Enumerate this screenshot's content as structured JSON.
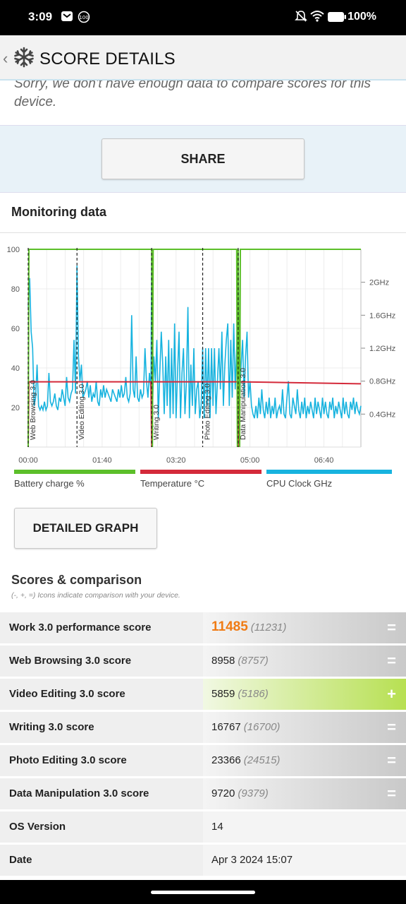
{
  "status": {
    "time": "3:09",
    "battery": "100%",
    "notif_badge": "100"
  },
  "appbar": {
    "title": "SCORE DETAILS"
  },
  "notice": {
    "line1": "Sorry, we don't have enough data to compare scores for this",
    "line2": "device."
  },
  "share_label": "SHARE",
  "monitor": {
    "title": "Monitoring data",
    "legend": [
      {
        "label": "Battery charge %",
        "color": "#5cbf2a"
      },
      {
        "label": "Temperature °C",
        "color": "#d42a3a"
      },
      {
        "label": "CPU Clock GHz",
        "color": "#17b3df"
      }
    ],
    "detailed_label": "DETAILED GRAPH"
  },
  "chart_data": {
    "type": "line",
    "x_ticks": [
      "00:00",
      "01:40",
      "03:20",
      "05:00",
      "06:40"
    ],
    "y_left_ticks": [
      "100",
      "80",
      "60",
      "40",
      "20"
    ],
    "y_right_ticks": [
      "2GHz",
      "1.6GHz",
      "1.2GHz",
      "0.8GHz",
      "0.4GHz"
    ],
    "ylim_left": [
      0,
      100
    ],
    "ylim_right": [
      0,
      2.4
    ],
    "xlim_seconds": [
      0,
      450
    ],
    "markers": [
      {
        "label": "Web Browsing 3.0",
        "x": 0
      },
      {
        "label": "Video Editing 3.0",
        "x": 66
      },
      {
        "label": "Writing 3.0",
        "x": 167
      },
      {
        "label": "Photo Editing 3.0",
        "x": 236
      },
      {
        "label": "Data Manipulation 3.0",
        "x": 284
      }
    ],
    "series": [
      {
        "name": "Battery charge %",
        "axis": "left",
        "points": [
          [
            0,
            0
          ],
          [
            1,
            100
          ],
          [
            166,
            100
          ],
          [
            167,
            100
          ],
          [
            168,
            0
          ],
          [
            169,
            100
          ],
          [
            282,
            100
          ],
          [
            283,
            0
          ],
          [
            284,
            100
          ],
          [
            286,
            0
          ],
          [
            287,
            100
          ],
          [
            450,
            100
          ]
        ]
      },
      {
        "name": "Temperature °C",
        "axis": "left",
        "points": [
          [
            0,
            0
          ],
          [
            1,
            33
          ],
          [
            166,
            33
          ],
          [
            167,
            0
          ],
          [
            168,
            33
          ],
          [
            283,
            33
          ],
          [
            284,
            0
          ],
          [
            285,
            33
          ],
          [
            450,
            32
          ]
        ]
      },
      {
        "name": "CPU Clock GHz",
        "axis": "right",
        "points": [
          [
            0,
            1.7
          ],
          [
            2,
            2.05
          ],
          [
            4,
            1.4
          ],
          [
            6,
            1.2
          ],
          [
            8,
            0.5
          ],
          [
            10,
            0.6
          ],
          [
            12,
            1.0
          ],
          [
            14,
            0.5
          ],
          [
            16,
            0.45
          ],
          [
            18,
            0.5
          ],
          [
            20,
            0.45
          ],
          [
            22,
            0.55
          ],
          [
            24,
            0.45
          ],
          [
            26,
            0.5
          ],
          [
            28,
            0.9
          ],
          [
            30,
            0.55
          ],
          [
            32,
            0.5
          ],
          [
            34,
            0.55
          ],
          [
            36,
            0.65
          ],
          [
            38,
            0.5
          ],
          [
            40,
            0.45
          ],
          [
            42,
            0.6
          ],
          [
            44,
            0.55
          ],
          [
            46,
            0.7
          ],
          [
            48,
            0.6
          ],
          [
            50,
            0.5
          ],
          [
            52,
            0.85
          ],
          [
            54,
            0.6
          ],
          [
            56,
            0.55
          ],
          [
            58,
            0.65
          ],
          [
            60,
            0.7
          ],
          [
            62,
            1.3
          ],
          [
            64,
            0.65
          ],
          [
            66,
            2.2
          ],
          [
            68,
            1.1
          ],
          [
            70,
            0.8
          ],
          [
            72,
            1.0
          ],
          [
            74,
            0.6
          ],
          [
            76,
            0.65
          ],
          [
            78,
            0.7
          ],
          [
            80,
            0.8
          ],
          [
            82,
            0.6
          ],
          [
            84,
            0.75
          ],
          [
            86,
            0.55
          ],
          [
            88,
            0.65
          ],
          [
            90,
            0.6
          ],
          [
            92,
            0.8
          ],
          [
            94,
            0.55
          ],
          [
            96,
            0.5
          ],
          [
            98,
            0.7
          ],
          [
            100,
            0.6
          ],
          [
            102,
            0.75
          ],
          [
            104,
            0.6
          ],
          [
            106,
            0.7
          ],
          [
            108,
            0.65
          ],
          [
            110,
            0.6
          ],
          [
            112,
            0.55
          ],
          [
            114,
            0.7
          ],
          [
            116,
            0.65
          ],
          [
            118,
            0.6
          ],
          [
            120,
            0.55
          ],
          [
            122,
            0.7
          ],
          [
            124,
            0.6
          ],
          [
            126,
            0.75
          ],
          [
            128,
            0.6
          ],
          [
            130,
            0.65
          ],
          [
            132,
            0.85
          ],
          [
            134,
            0.6
          ],
          [
            136,
            0.55
          ],
          [
            138,
            0.65
          ],
          [
            140,
            1.6
          ],
          [
            142,
            0.7
          ],
          [
            144,
            0.6
          ],
          [
            146,
            1.1
          ],
          [
            148,
            0.6
          ],
          [
            150,
            0.55
          ],
          [
            152,
            0.7
          ],
          [
            154,
            0.6
          ],
          [
            156,
            0.65
          ],
          [
            158,
            1.2
          ],
          [
            160,
            0.8
          ],
          [
            162,
            0.6
          ],
          [
            164,
            0.9
          ],
          [
            166,
            0.7
          ],
          [
            167,
            2.3
          ],
          [
            168,
            0.4
          ],
          [
            170,
            1.1
          ],
          [
            172,
            0.8
          ],
          [
            174,
            1.3
          ],
          [
            176,
            0.35
          ],
          [
            178,
            0.9
          ],
          [
            180,
            1.4
          ],
          [
            182,
            1.0
          ],
          [
            184,
            0.4
          ],
          [
            186,
            1.1
          ],
          [
            188,
            0.5
          ],
          [
            190,
            1.3
          ],
          [
            192,
            0.35
          ],
          [
            194,
            1.2
          ],
          [
            196,
            0.4
          ],
          [
            198,
            1.5
          ],
          [
            200,
            0.35
          ],
          [
            202,
            0.9
          ],
          [
            204,
            1.4
          ],
          [
            206,
            0.35
          ],
          [
            208,
            0.9
          ],
          [
            210,
            1.2
          ],
          [
            212,
            0.4
          ],
          [
            214,
            0.8
          ],
          [
            216,
            1.7
          ],
          [
            218,
            0.35
          ],
          [
            220,
            1.0
          ],
          [
            222,
            0.5
          ],
          [
            224,
            1.2
          ],
          [
            226,
            0.4
          ],
          [
            228,
            0.7
          ],
          [
            230,
            0.8
          ],
          [
            232,
            0.35
          ],
          [
            234,
            0.5
          ],
          [
            236,
            1.2
          ],
          [
            238,
            0.35
          ],
          [
            240,
            1.2
          ],
          [
            242,
            0.5
          ],
          [
            244,
            1.2
          ],
          [
            246,
            0.35
          ],
          [
            248,
            1.2
          ],
          [
            250,
            0.5
          ],
          [
            252,
            1.2
          ],
          [
            254,
            0.4
          ],
          [
            256,
            0.8
          ],
          [
            258,
            1.2
          ],
          [
            260,
            0.7
          ],
          [
            262,
            1.4
          ],
          [
            264,
            0.5
          ],
          [
            266,
            1.0
          ],
          [
            268,
            1.3
          ],
          [
            270,
            1.5
          ],
          [
            272,
            0.5
          ],
          [
            274,
            1.3
          ],
          [
            276,
            0.6
          ],
          [
            278,
            1.5
          ],
          [
            280,
            0.7
          ],
          [
            282,
            1.2
          ],
          [
            284,
            2.2
          ],
          [
            286,
            0.6
          ],
          [
            288,
            1.0
          ],
          [
            290,
            1.3
          ],
          [
            292,
            0.6
          ],
          [
            294,
            1.1
          ],
          [
            296,
            1.4
          ],
          [
            298,
            0.6
          ],
          [
            300,
            0.8
          ],
          [
            302,
            0.5
          ],
          [
            304,
            0.4
          ],
          [
            306,
            0.35
          ],
          [
            308,
            0.5
          ],
          [
            310,
            0.35
          ],
          [
            312,
            0.6
          ],
          [
            314,
            0.4
          ],
          [
            316,
            0.7
          ],
          [
            318,
            0.45
          ],
          [
            320,
            0.35
          ],
          [
            322,
            0.55
          ],
          [
            324,
            0.4
          ],
          [
            326,
            0.6
          ],
          [
            328,
            0.35
          ],
          [
            330,
            0.5
          ],
          [
            332,
            0.4
          ],
          [
            334,
            0.6
          ],
          [
            336,
            0.35
          ],
          [
            338,
            0.45
          ],
          [
            340,
            0.5
          ],
          [
            342,
            0.4
          ],
          [
            344,
            0.7
          ],
          [
            346,
            0.4
          ],
          [
            348,
            0.35
          ],
          [
            350,
            0.6
          ],
          [
            352,
            0.8
          ],
          [
            354,
            0.4
          ],
          [
            356,
            0.35
          ],
          [
            358,
            0.6
          ],
          [
            360,
            0.5
          ],
          [
            362,
            0.4
          ],
          [
            364,
            0.7
          ],
          [
            366,
            0.45
          ],
          [
            368,
            0.35
          ],
          [
            370,
            0.55
          ],
          [
            372,
            0.4
          ],
          [
            374,
            0.6
          ],
          [
            376,
            0.35
          ],
          [
            378,
            0.5
          ],
          [
            380,
            0.4
          ],
          [
            382,
            0.55
          ],
          [
            384,
            0.45
          ],
          [
            386,
            0.35
          ],
          [
            388,
            0.6
          ],
          [
            390,
            0.4
          ],
          [
            392,
            0.55
          ],
          [
            394,
            0.45
          ],
          [
            396,
            0.35
          ],
          [
            398,
            0.6
          ],
          [
            400,
            0.4
          ],
          [
            402,
            0.55
          ],
          [
            404,
            0.4
          ],
          [
            406,
            0.35
          ],
          [
            408,
            0.55
          ],
          [
            410,
            0.45
          ],
          [
            412,
            0.6
          ],
          [
            414,
            0.35
          ],
          [
            416,
            0.5
          ],
          [
            418,
            0.4
          ],
          [
            420,
            0.55
          ],
          [
            422,
            0.45
          ],
          [
            424,
            0.35
          ],
          [
            426,
            0.6
          ],
          [
            428,
            0.4
          ],
          [
            430,
            0.55
          ],
          [
            432,
            0.4
          ],
          [
            434,
            0.35
          ],
          [
            436,
            0.55
          ],
          [
            438,
            0.45
          ],
          [
            440,
            0.6
          ],
          [
            442,
            0.4
          ],
          [
            444,
            0.55
          ],
          [
            446,
            0.45
          ],
          [
            448,
            0.4
          ],
          [
            450,
            0.5
          ]
        ]
      }
    ]
  },
  "scores": {
    "title": "Scores & comparison",
    "note": "(-, +, =) Icons indicate comparison with your device.",
    "rows": [
      {
        "label": "Work 3.0 performance score",
        "value": "11485",
        "compare": "(11231)",
        "indicator": "="
      },
      {
        "label": "Web Browsing 3.0 score",
        "value": "8958",
        "compare": "(8757)",
        "indicator": "="
      },
      {
        "label": "Video Editing 3.0 score",
        "value": "5859",
        "compare": "(5186)",
        "indicator": "+"
      },
      {
        "label": "Writing 3.0 score",
        "value": "16767",
        "compare": "(16700)",
        "indicator": "="
      },
      {
        "label": "Photo Editing 3.0 score",
        "value": "23366",
        "compare": "(24515)",
        "indicator": "="
      },
      {
        "label": "Data Manipulation 3.0 score",
        "value": "9720",
        "compare": "(9379)",
        "indicator": "="
      },
      {
        "label": "OS Version",
        "value": "14",
        "compare": "",
        "indicator": ""
      },
      {
        "label": "Date",
        "value": "Apr 3 2024 15:07",
        "compare": "",
        "indicator": ""
      }
    ]
  }
}
